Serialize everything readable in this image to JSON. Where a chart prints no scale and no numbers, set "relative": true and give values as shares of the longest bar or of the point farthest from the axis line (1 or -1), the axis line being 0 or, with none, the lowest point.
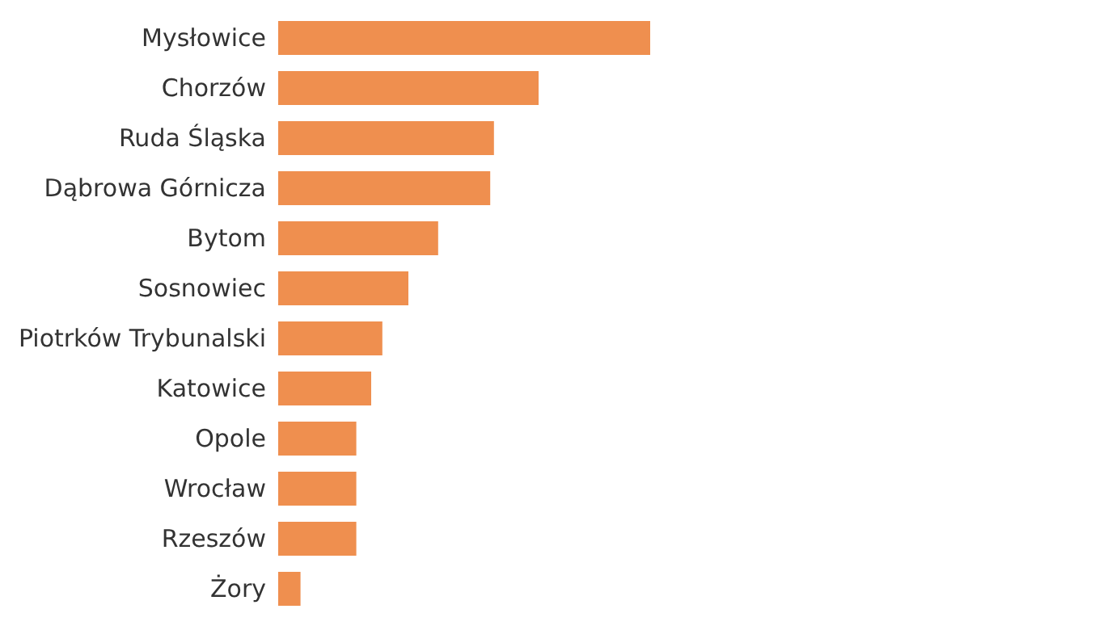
{
  "chart_data": {
    "type": "bar",
    "orientation": "horizontal",
    "relative": true,
    "color": "#ef8f4f",
    "categories": [
      "Mysłowice",
      "Chorzów",
      "Ruda Śląska",
      "Dąbrowa Górnicza",
      "Bytom",
      "Sosnowiec",
      "Piotrków Trybunalski",
      "Katowice",
      "Opole",
      "Wrocław",
      "Rzeszów",
      "Żory"
    ],
    "values": [
      1,
      0.7,
      0.58,
      0.57,
      0.43,
      0.35,
      0.28,
      0.25,
      0.21,
      0.21,
      0.21,
      0.06
    ]
  }
}
